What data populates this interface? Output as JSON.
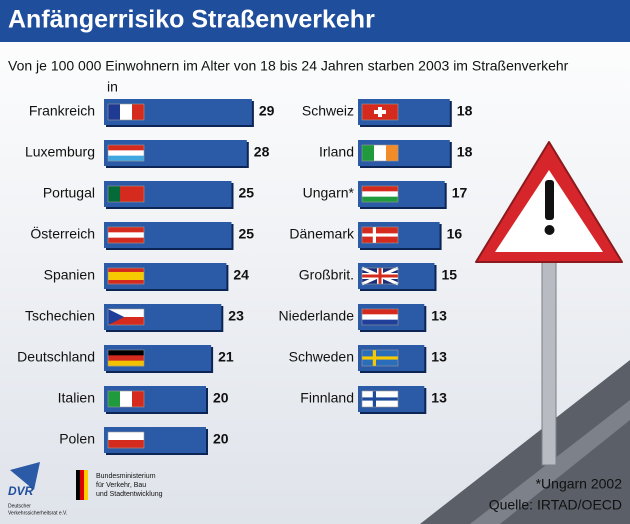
{
  "title": "Anfängerrisiko Straßenverkehr",
  "subtitle": "Von je 100 000 Einwohnern im Alter von 18 bis 24 Jahren starben 2003 im Straßenverkehr",
  "subtitle_in": "in",
  "footnote": "*Ungarn 2002",
  "source": "Quelle: IRTAD/OECD",
  "logos": {
    "dvr": "DVR",
    "dvr_caption": [
      "Deutscher",
      "Verkehrssicherheitsrat e.V."
    ],
    "ministry": [
      "Bundesministerium",
      "für Verkehr, Bau",
      "und Stadtentwicklung"
    ]
  },
  "chart_data": [
    {
      "type": "bar",
      "orientation": "horizontal",
      "color": "#2b5aa6",
      "categories": [
        "Frankreich",
        "Luxemburg",
        "Portugal",
        "Österreich",
        "Spanien",
        "Tschechien",
        "Deutschland",
        "Italien",
        "Polen"
      ],
      "values": [
        29,
        28,
        25,
        25,
        24,
        23,
        21,
        20,
        20
      ]
    },
    {
      "type": "bar",
      "orientation": "horizontal",
      "color": "#2b5aa6",
      "categories": [
        "Schweiz",
        "Irland",
        "Ungarn*",
        "Dänemark",
        "Großbrit.",
        "Niederlande",
        "Schweden",
        "Finnland"
      ],
      "values": [
        18,
        18,
        17,
        16,
        15,
        13,
        13,
        13
      ]
    }
  ]
}
